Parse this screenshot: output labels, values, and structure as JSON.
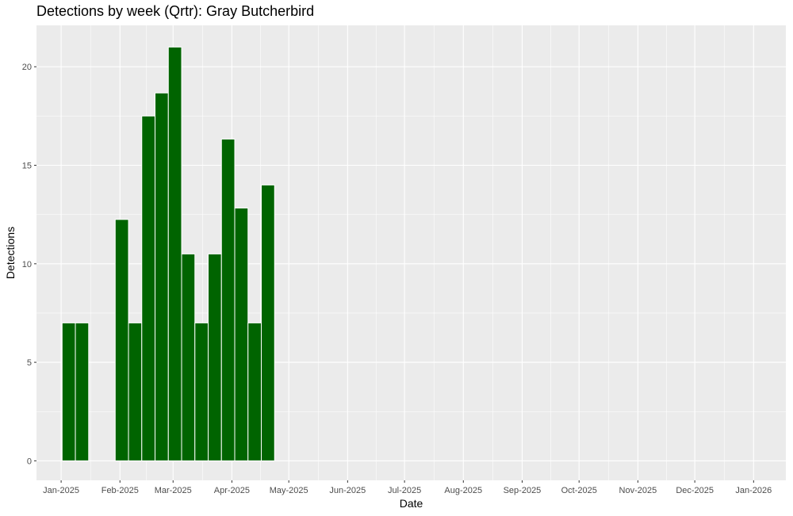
{
  "chart_data": {
    "type": "bar",
    "title": "Detections by week (Qrtr): Gray Butcherbird",
    "xlabel": "Date",
    "ylabel": "Detections",
    "x_axis_type": "date",
    "xlim": [
      "2024-12-19",
      "2026-01-18"
    ],
    "ylim": [
      -0.99,
      22.1
    ],
    "x_tick_labels": [
      "Jan-2025",
      "Feb-2025",
      "Mar-2025",
      "Apr-2025",
      "May-2025",
      "Jun-2025",
      "Jul-2025",
      "Aug-2025",
      "Sep-2025",
      "Oct-2025",
      "Nov-2025",
      "Dec-2025",
      "Jan-2026"
    ],
    "x_ticks": [
      "2025-01-01",
      "2025-02-01",
      "2025-03-01",
      "2025-04-01",
      "2025-05-01",
      "2025-06-01",
      "2025-07-01",
      "2025-08-01",
      "2025-09-01",
      "2025-10-01",
      "2025-11-01",
      "2025-12-01",
      "2026-01-01"
    ],
    "y_tick_labels": [
      "0",
      "5",
      "10",
      "15",
      "20"
    ],
    "y_ticks": [
      0,
      5,
      10,
      15,
      20
    ],
    "grid": true,
    "bar_color": "#006400",
    "panel_color": "#EBEBEB",
    "grid_color": "#FFFFFF",
    "weeks": [
      "2025-01-05",
      "2025-01-12",
      "2025-01-19",
      "2025-01-26",
      "2025-02-02",
      "2025-02-09",
      "2025-02-16",
      "2025-02-23",
      "2025-03-02",
      "2025-03-09",
      "2025-03-16",
      "2025-03-23",
      "2025-03-30",
      "2025-04-06",
      "2025-04-13",
      "2025-04-20"
    ],
    "values": [
      7,
      7,
      0,
      0,
      12.25,
      7,
      17.5,
      18.67,
      21,
      10.5,
      7,
      10.5,
      16.33,
      12.83,
      7,
      14
    ]
  }
}
